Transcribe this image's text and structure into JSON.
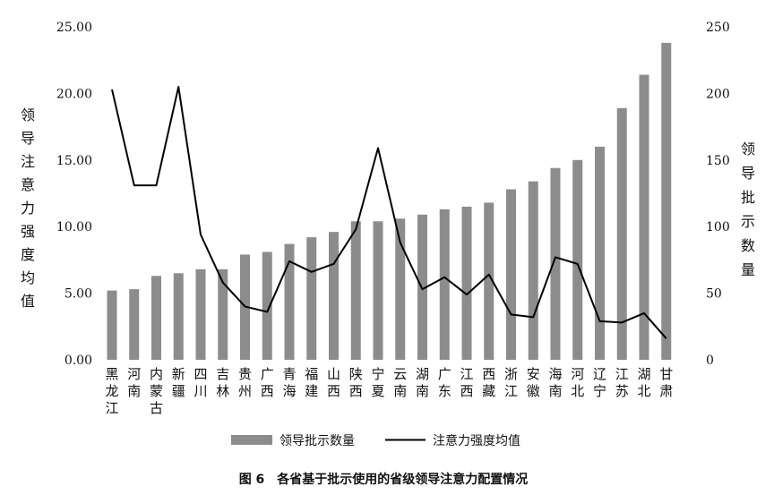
{
  "chart_data": {
    "type": "bar",
    "categories": [
      "黑龙江",
      "河南",
      "内蒙古",
      "新疆",
      "四川",
      "吉林",
      "贵州",
      "广西",
      "青海",
      "福建",
      "山西",
      "陕西",
      "宁夏",
      "云南",
      "湖南",
      "广东",
      "江西",
      "西藏",
      "浙江",
      "安徽",
      "海南",
      "河北",
      "辽宁",
      "江苏",
      "湖北",
      "甘肃"
    ],
    "series": [
      {
        "name": "领导批示数量",
        "type": "bar",
        "axis": "right",
        "color": "#8c8c8c",
        "values": [
          52,
          53,
          63,
          65,
          68,
          68,
          79,
          81,
          87,
          92,
          96,
          104,
          104,
          106,
          109,
          113,
          115,
          118,
          128,
          134,
          144,
          150,
          160,
          189,
          214,
          238
        ]
      },
      {
        "name": "注意力强度均值",
        "type": "line",
        "axis": "left",
        "color": "#000000",
        "values": [
          20.3,
          13.1,
          13.1,
          20.5,
          9.4,
          5.8,
          4.0,
          3.6,
          7.4,
          6.6,
          7.2,
          9.8,
          15.9,
          8.8,
          5.3,
          6.2,
          4.9,
          6.4,
          3.4,
          3.2,
          7.7,
          7.2,
          2.9,
          2.8,
          3.5,
          1.6
        ]
      }
    ],
    "left_axis": {
      "label": "领导注意力强度均值",
      "ticks": [
        "0.00",
        "5.00",
        "10.00",
        "15.00",
        "20.00",
        "25.00"
      ],
      "ylim": [
        0,
        25
      ]
    },
    "right_axis": {
      "label": "领导批示数量",
      "ticks": [
        "0",
        "50",
        "100",
        "150",
        "200",
        "250"
      ],
      "ylim": [
        0,
        250
      ]
    },
    "legend": {
      "placement": "bottom",
      "entries": [
        "领导批示数量",
        "注意力强度均值"
      ]
    },
    "grid": false,
    "caption": "图 6　各省基于批示使用的省级领导注意力配置情况"
  }
}
